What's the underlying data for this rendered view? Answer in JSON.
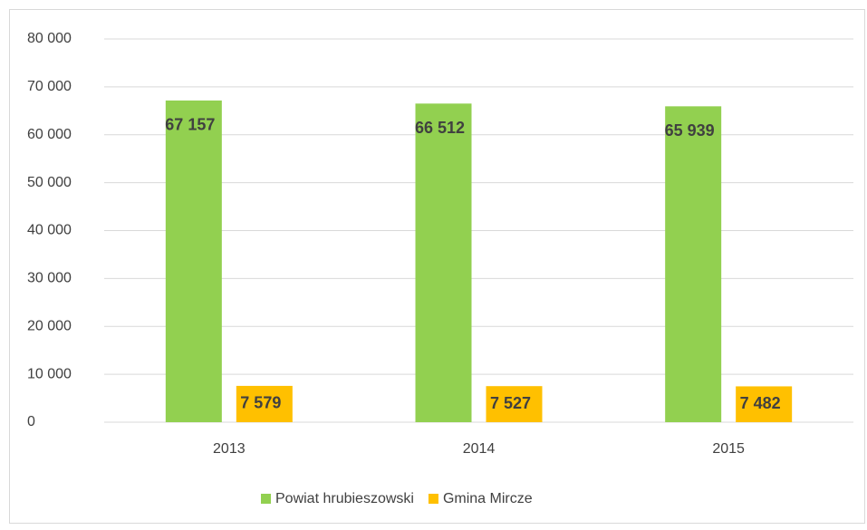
{
  "chart_data": {
    "type": "bar",
    "categories": [
      "2013",
      "2014",
      "2015"
    ],
    "series": [
      {
        "name": "Powiat hrubieszowski",
        "color": "#92d050",
        "values": [
          67157,
          66512,
          65939
        ],
        "value_labels": [
          "67 157",
          "66 512",
          "65 939"
        ]
      },
      {
        "name": "Gmina Mircze",
        "color": "#ffc000",
        "values": [
          7579,
          7527,
          7482
        ],
        "value_labels": [
          "7 579",
          "7 527",
          "7 482"
        ]
      }
    ],
    "ylim": [
      0,
      80000
    ],
    "yticks": [
      0,
      {
        "value": 10000,
        "label": "10 000"
      },
      {
        "value": 20000,
        "label": "20 000"
      },
      {
        "value": 30000,
        "label": "30 000"
      },
      {
        "value": 40000,
        "label": "40 000"
      },
      {
        "value": 50000,
        "label": "50 000"
      },
      {
        "value": 60000,
        "label": "60 000"
      },
      {
        "value": 70000,
        "label": "70 000"
      },
      {
        "value": 80000,
        "label": "80 000"
      }
    ],
    "grid": true,
    "legend": "bottom"
  }
}
